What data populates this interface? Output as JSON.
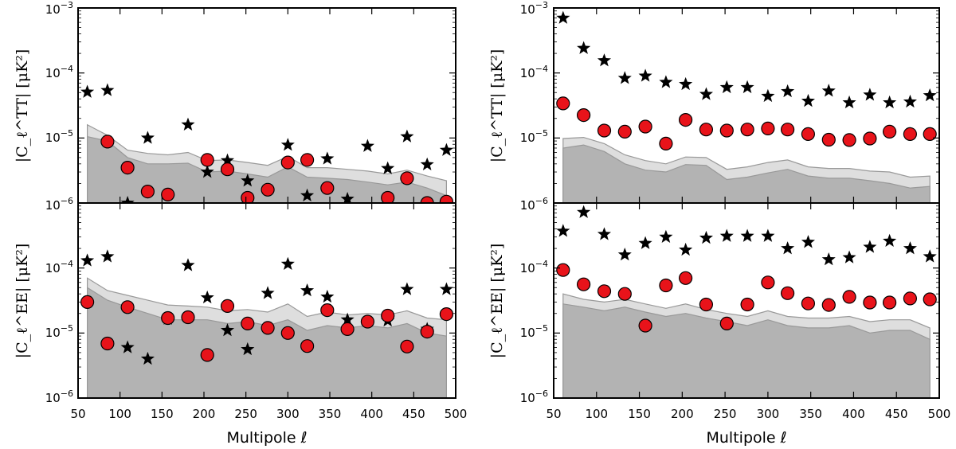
{
  "figure": {
    "xlabel": "Multipole ℓ",
    "ylabel_tt": "|C_ℓ^TT| [μK²]",
    "ylabel_ee": "|C_ℓ^EE| [μK²]",
    "x_ticks": [
      "50",
      "100",
      "150",
      "200",
      "250",
      "300",
      "350",
      "400",
      "450",
      "500"
    ],
    "y_ticks_tt": [
      "10^-6",
      "10^-5",
      "10^-4",
      "10^-3"
    ],
    "y_ticks_ee": [
      "10^-6",
      "10^-5",
      "10^-4"
    ],
    "colors": {
      "circle_fill": "#e8131a",
      "band_dark": "#b3b3b3",
      "band_light": "#dedede"
    }
  },
  "chart_data": [
    {
      "type": "scatter",
      "panel": "top-left",
      "ylabel": "|C_ℓ^TT| [μK²]",
      "xlim": [
        50,
        500
      ],
      "ylim": [
        1e-06,
        0.001
      ],
      "yscale": "log",
      "x": [
        61,
        85,
        109,
        133,
        157,
        181,
        204,
        228,
        252,
        276,
        300,
        323,
        347,
        371,
        395,
        419,
        442,
        466,
        489
      ],
      "series": [
        {
          "marker": "star",
          "values": [
            5.1e-05,
            5.4e-05,
            1e-06,
            1e-05,
            null,
            1.6e-05,
            3e-06,
            4.5e-06,
            2.2e-06,
            null,
            7.8e-06,
            1.3e-06,
            4.8e-06,
            1.15e-06,
            7.5e-06,
            3.4e-06,
            1.05e-05,
            3.9e-06,
            6.5e-06
          ]
        },
        {
          "marker": "circle",
          "values": [
            null,
            8.8e-06,
            3.5e-06,
            1.5e-06,
            1.35e-06,
            null,
            4.6e-06,
            3.3e-06,
            1.2e-06,
            1.6e-06,
            4.2e-06,
            4.6e-06,
            1.7e-06,
            null,
            null,
            1.2e-06,
            2.4e-06,
            1e-06,
            1.05e-06
          ]
        }
      ],
      "band_dark": [
        1.05e-05,
        9e-06,
        5e-06,
        4e-06,
        4e-06,
        4.1e-06,
        3e-06,
        3.1e-06,
        2.8e-06,
        2.5e-06,
        3.6e-06,
        2.5e-06,
        2.4e-06,
        2.3e-06,
        2.1e-06,
        1.9e-06,
        2.1e-06,
        1.7e-06,
        1.3e-06
      ],
      "band_light": [
        1.6e-05,
        1.1e-05,
        6.5e-06,
        5.8e-06,
        5.5e-06,
        6e-06,
        4.5e-06,
        4.6e-06,
        4.2e-06,
        3.8e-06,
        5.2e-06,
        3.5e-06,
        3.5e-06,
        3.3e-06,
        3.1e-06,
        2.8e-06,
        3.2e-06,
        2.6e-06,
        2.2e-06
      ]
    },
    {
      "type": "scatter",
      "panel": "bottom-left",
      "ylabel": "|C_ℓ^EE| [μK²]",
      "xlim": [
        50,
        500
      ],
      "ylim": [
        1e-06,
        0.001
      ],
      "yscale": "log",
      "x": [
        61,
        85,
        109,
        133,
        157,
        181,
        204,
        228,
        252,
        276,
        300,
        323,
        347,
        371,
        395,
        419,
        442,
        466,
        489
      ],
      "series": [
        {
          "marker": "star",
          "values": [
            0.00013,
            0.00015,
            6e-06,
            4e-06,
            1.65e-05,
            0.00011,
            3.5e-05,
            1.1e-05,
            5.6e-06,
            4.1e-05,
            0.000115,
            4.5e-05,
            3.6e-05,
            1.6e-05,
            null,
            1.55e-05,
            4.7e-05,
            1.15e-05,
            4.7e-05
          ]
        },
        {
          "marker": "circle",
          "values": [
            3e-05,
            6.9e-06,
            2.5e-05,
            null,
            1.7e-05,
            1.75e-05,
            4.6e-06,
            2.6e-05,
            1.4e-05,
            1.2e-05,
            1e-05,
            6.3e-06,
            2.25e-05,
            1.15e-05,
            1.5e-05,
            1.85e-05,
            6.2e-06,
            1.05e-05,
            1.95e-05
          ]
        }
      ],
      "band_dark": [
        5e-05,
        3.2e-05,
        2.5e-05,
        2e-05,
        1.6e-05,
        1.6e-05,
        1.6e-05,
        1.4e-05,
        1.5e-05,
        1.3e-05,
        1.6e-05,
        1.1e-05,
        1.3e-05,
        1.2e-05,
        1.3e-05,
        1.2e-05,
        1.4e-05,
        1e-05,
        9e-06
      ],
      "band_light": [
        7e-05,
        4.5e-05,
        3.8e-05,
        3.2e-05,
        2.7e-05,
        2.6e-05,
        2.5e-05,
        2.2e-05,
        2.3e-05,
        2.1e-05,
        2.8e-05,
        1.8e-05,
        2.1e-05,
        1.9e-05,
        2e-05,
        1.9e-05,
        2.2e-05,
        1.7e-05,
        1.6e-05
      ]
    },
    {
      "type": "scatter",
      "panel": "top-right",
      "ylabel": "|C_ℓ^TT| [μK²]",
      "xlim": [
        50,
        500
      ],
      "ylim": [
        1e-06,
        0.001
      ],
      "yscale": "log",
      "x": [
        61,
        85,
        109,
        133,
        157,
        181,
        204,
        228,
        252,
        276,
        300,
        323,
        347,
        371,
        395,
        419,
        442,
        466,
        489
      ],
      "series": [
        {
          "marker": "star",
          "values": [
            0.0007,
            0.00024,
            0.000155,
            8.3e-05,
            9e-05,
            7.2e-05,
            6.7e-05,
            4.7e-05,
            6e-05,
            6e-05,
            4.4e-05,
            5.2e-05,
            3.7e-05,
            5.3e-05,
            3.5e-05,
            4.6e-05,
            3.5e-05,
            3.6e-05,
            4.5e-05
          ]
        },
        {
          "marker": "circle",
          "values": [
            3.4e-05,
            2.25e-05,
            1.3e-05,
            1.25e-05,
            1.5e-05,
            8.2e-06,
            1.9e-05,
            1.35e-05,
            1.3e-05,
            1.35e-05,
            1.4e-05,
            1.35e-05,
            1.15e-05,
            9.4e-06,
            9.3e-06,
            9.8e-06,
            1.25e-05,
            1.15e-05,
            1.15e-05
          ]
        }
      ],
      "band_dark": [
        7e-06,
        7.8e-06,
        6.2e-06,
        4e-06,
        3.2e-06,
        3e-06,
        3.9e-06,
        3.8e-06,
        2.3e-06,
        2.5e-06,
        2.9e-06,
        3.3e-06,
        2.6e-06,
        2.4e-06,
        2.4e-06,
        2.2e-06,
        2e-06,
        1.7e-06,
        1.8e-06
      ],
      "band_light": [
        9.8e-06,
        1.02e-05,
        8.2e-06,
        5.5e-06,
        4.5e-06,
        4e-06,
        5.1e-06,
        5e-06,
        3.3e-06,
        3.6e-06,
        4.2e-06,
        4.6e-06,
        3.6e-06,
        3.4e-06,
        3.4e-06,
        3.1e-06,
        3e-06,
        2.5e-06,
        2.6e-06
      ]
    },
    {
      "type": "scatter",
      "panel": "bottom-right",
      "ylabel": "|C_ℓ^EE| [μK²]",
      "xlim": [
        50,
        500
      ],
      "ylim": [
        1e-06,
        0.001
      ],
      "yscale": "log",
      "x": [
        61,
        85,
        109,
        133,
        157,
        181,
        204,
        228,
        252,
        276,
        300,
        323,
        347,
        371,
        395,
        419,
        442,
        466,
        489
      ],
      "series": [
        {
          "marker": "star",
          "values": [
            0.00037,
            0.00072,
            0.00033,
            0.00016,
            0.00024,
            0.0003,
            0.00019,
            0.00029,
            0.00031,
            0.00031,
            0.00031,
            0.0002,
            0.00025,
            0.000135,
            0.000145,
            0.00021,
            0.00026,
            0.0002,
            0.00015
          ]
        },
        {
          "marker": "circle",
          "values": [
            9.3e-05,
            5.6e-05,
            4.4e-05,
            4e-05,
            1.3e-05,
            5.4e-05,
            7e-05,
            2.75e-05,
            1.4e-05,
            2.75e-05,
            6e-05,
            4.1e-05,
            2.85e-05,
            2.7e-05,
            3.6e-05,
            2.95e-05,
            2.95e-05,
            3.4e-05,
            3.3e-05
          ]
        }
      ],
      "band_dark": [
        2.8e-05,
        2.5e-05,
        2.2e-05,
        2.5e-05,
        2.1e-05,
        1.8e-05,
        2e-05,
        1.7e-05,
        1.5e-05,
        1.3e-05,
        1.6e-05,
        1.3e-05,
        1.2e-05,
        1.2e-05,
        1.3e-05,
        1e-05,
        1.1e-05,
        1.1e-05,
        8e-06
      ],
      "band_light": [
        4e-05,
        3.3e-05,
        3e-05,
        3.3e-05,
        2.8e-05,
        2.4e-05,
        2.8e-05,
        2.3e-05,
        2e-05,
        1.8e-05,
        2.2e-05,
        1.8e-05,
        1.7e-05,
        1.7e-05,
        1.8e-05,
        1.5e-05,
        1.6e-05,
        1.6e-05,
        1.2e-05
      ]
    }
  ]
}
